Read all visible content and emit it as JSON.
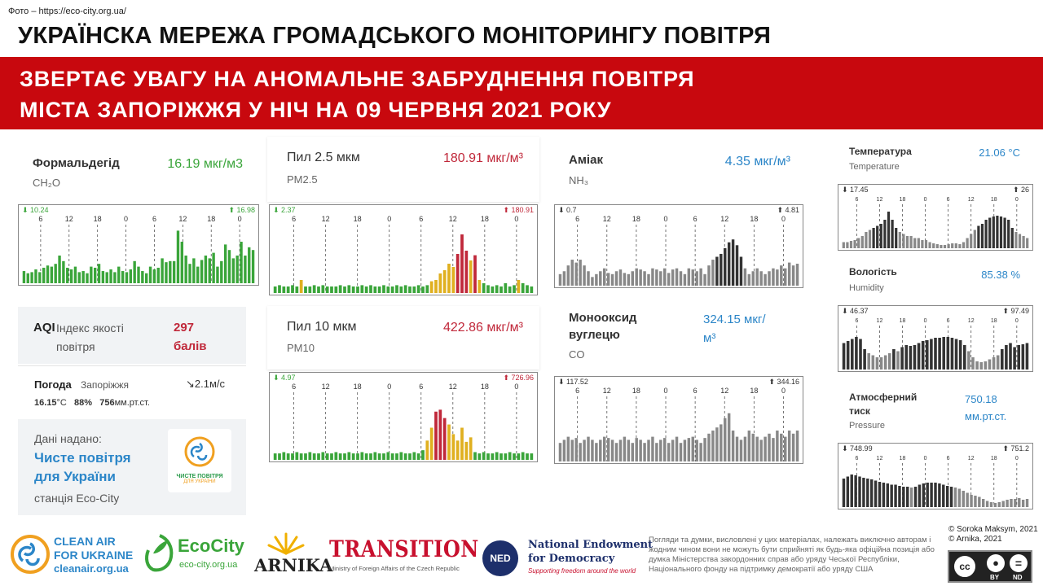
{
  "photo_credit": "Фото – https://eco-city.org.ua/",
  "title": "УКРАЇНСКА МЕРЕЖА ГРОМАДСЬКОГО МОНІТОРИНГУ ПОВІТРЯ",
  "banner": {
    "line1": "ЗВЕРТАЄ УВАГУ НА АНОМАЛЬНЕ ЗАБРУДНЕННЯ ПОВІТРЯ",
    "line2": "МІСТА ЗАПОРІЖЖЯ У НІЧ НА 09 ЧЕРВНЯ 2021 РОКУ"
  },
  "colors": {
    "green": "#3aa53a",
    "yellow": "#e0b020",
    "red": "#c0283a",
    "dark": "#333333",
    "grey": "#888888",
    "banner": "#c8080e"
  },
  "hour_labels": [
    "6",
    "12",
    "18",
    "0",
    "6",
    "12",
    "18",
    "0"
  ],
  "panels": {
    "ch2o": {
      "name": "Формальдегід",
      "formula": "CH₂O",
      "value": "16.19 мкг/м3",
      "min": "10.24",
      "max": "16.98",
      "color": "green",
      "bars": [
        0.22,
        0.18,
        0.2,
        0.25,
        0.2,
        0.28,
        0.32,
        0.3,
        0.35,
        0.5,
        0.4,
        0.28,
        0.25,
        0.3,
        0.2,
        0.22,
        0.18,
        0.3,
        0.28,
        0.35,
        0.22,
        0.2,
        0.25,
        0.2,
        0.3,
        0.22,
        0.2,
        0.25,
        0.4,
        0.3,
        0.22,
        0.18,
        0.3,
        0.25,
        0.28,
        0.45,
        0.38,
        0.4,
        0.4,
        0.95,
        0.75,
        0.5,
        0.35,
        0.45,
        0.3,
        0.42,
        0.5,
        0.45,
        0.55,
        0.3,
        0.4,
        0.7,
        0.6,
        0.45,
        0.5,
        0.75,
        0.5,
        0.65,
        0.6
      ]
    },
    "pm25": {
      "name": "Пил 2.5 мкм",
      "code": "PM2.5",
      "value": "180.91 мкг/м³",
      "min": "2.37",
      "max": "180.91",
      "bars": [
        0.1,
        0.12,
        0.1,
        0.1,
        0.12,
        0.1,
        0.2,
        0.1,
        0.1,
        0.12,
        0.1,
        0.12,
        0.1,
        0.1,
        0.1,
        0.12,
        0.1,
        0.12,
        0.1,
        0.1,
        0.12,
        0.1,
        0.12,
        0.1,
        0.1,
        0.12,
        0.1,
        0.1,
        0.12,
        0.1,
        0.12,
        0.1,
        0.1,
        0.12,
        0.1,
        0.12,
        0.18,
        0.2,
        0.3,
        0.35,
        0.45,
        0.4,
        0.6,
        0.9,
        0.65,
        0.5,
        0.58,
        0.2,
        0.15,
        0.12,
        0.1,
        0.12,
        0.1,
        0.15,
        0.1,
        0.12,
        0.2,
        0.15,
        0.12,
        0.1
      ]
    },
    "ammonia": {
      "name": "Аміак",
      "formula": "NH₃",
      "value": "4.35 мкг/м³",
      "min": "0.7",
      "max": "4.81",
      "color": "dark",
      "bars": [
        0.2,
        0.25,
        0.35,
        0.45,
        0.4,
        0.45,
        0.35,
        0.25,
        0.15,
        0.2,
        0.25,
        0.3,
        0.22,
        0.2,
        0.25,
        0.28,
        0.22,
        0.2,
        0.25,
        0.3,
        0.28,
        0.25,
        0.2,
        0.3,
        0.28,
        0.25,
        0.3,
        0.22,
        0.28,
        0.3,
        0.25,
        0.2,
        0.3,
        0.28,
        0.25,
        0.3,
        0.2,
        0.35,
        0.45,
        0.5,
        0.55,
        0.65,
        0.75,
        0.8,
        0.7,
        0.5,
        0.3,
        0.2,
        0.25,
        0.3,
        0.25,
        0.2,
        0.25,
        0.3,
        0.28,
        0.35,
        0.3,
        0.4,
        0.35,
        0.38
      ]
    },
    "temp": {
      "name": "Температура",
      "sub": "Temperature",
      "value": "21.06 °C",
      "min": "17.45",
      "max": "26",
      "color": "dark",
      "bars": [
        0.15,
        0.15,
        0.18,
        0.2,
        0.25,
        0.3,
        0.4,
        0.45,
        0.5,
        0.55,
        0.6,
        0.7,
        0.9,
        0.7,
        0.5,
        0.4,
        0.35,
        0.3,
        0.3,
        0.25,
        0.25,
        0.2,
        0.2,
        0.15,
        0.12,
        0.1,
        0.08,
        0.08,
        0.1,
        0.12,
        0.12,
        0.1,
        0.15,
        0.25,
        0.35,
        0.45,
        0.55,
        0.6,
        0.7,
        0.75,
        0.78,
        0.8,
        0.78,
        0.75,
        0.7,
        0.5,
        0.4,
        0.35,
        0.3,
        0.25
      ]
    },
    "co": {
      "name1": "Монооксид",
      "name2": "вуглецю",
      "code": "CO",
      "value1": "324.15 мкг/",
      "value2": "м³",
      "min": "117.52",
      "max": "344.16",
      "color": "grey",
      "bars": [
        0.3,
        0.35,
        0.4,
        0.35,
        0.38,
        0.3,
        0.35,
        0.4,
        0.35,
        0.3,
        0.35,
        0.4,
        0.38,
        0.35,
        0.3,
        0.35,
        0.4,
        0.35,
        0.3,
        0.38,
        0.35,
        0.3,
        0.35,
        0.4,
        0.3,
        0.35,
        0.38,
        0.3,
        0.35,
        0.4,
        0.3,
        0.35,
        0.38,
        0.4,
        0.35,
        0.3,
        0.38,
        0.45,
        0.5,
        0.55,
        0.6,
        0.7,
        0.78,
        0.5,
        0.4,
        0.35,
        0.4,
        0.5,
        0.45,
        0.4,
        0.35,
        0.4,
        0.45,
        0.38,
        0.5,
        0.45,
        0.4,
        0.5,
        0.45,
        0.5
      ]
    },
    "humid": {
      "name": "Вологість",
      "sub": "Humidity",
      "value": "85.38 %",
      "min": "46.37",
      "max": "97.49",
      "color": "dark",
      "bars": [
        0.65,
        0.7,
        0.75,
        0.8,
        0.75,
        0.5,
        0.4,
        0.35,
        0.3,
        0.3,
        0.35,
        0.4,
        0.5,
        0.45,
        0.55,
        0.6,
        0.58,
        0.6,
        0.65,
        0.7,
        0.72,
        0.75,
        0.78,
        0.78,
        0.8,
        0.8,
        0.78,
        0.75,
        0.72,
        0.6,
        0.45,
        0.3,
        0.2,
        0.18,
        0.2,
        0.25,
        0.3,
        0.35,
        0.5,
        0.6,
        0.65,
        0.55,
        0.6,
        0.62,
        0.65
      ]
    },
    "pm10": {
      "name": "Пил 10 мкм",
      "code": "PM10",
      "value": "422.86 мкг/м³",
      "min": "4.97",
      "max": "726.96",
      "bars": [
        0.1,
        0.1,
        0.12,
        0.1,
        0.1,
        0.12,
        0.1,
        0.1,
        0.12,
        0.1,
        0.1,
        0.12,
        0.1,
        0.1,
        0.12,
        0.1,
        0.1,
        0.12,
        0.1,
        0.1,
        0.12,
        0.1,
        0.1,
        0.12,
        0.1,
        0.1,
        0.12,
        0.1,
        0.1,
        0.12,
        0.1,
        0.1,
        0.12,
        0.1,
        0.15,
        0.3,
        0.5,
        0.75,
        0.78,
        0.65,
        0.55,
        0.4,
        0.3,
        0.5,
        0.28,
        0.35,
        0.12,
        0.1,
        0.12,
        0.1,
        0.1,
        0.12,
        0.1,
        0.1,
        0.12,
        0.1,
        0.1,
        0.12,
        0.1,
        0.1
      ]
    },
    "pressure": {
      "name1": "Атмосферний",
      "name2": "тиск",
      "sub": "Pressure",
      "value1": "750.18",
      "value2": "мм.рт.ст.",
      "min": "748.99",
      "max": "751.2",
      "color": "dark",
      "bars": [
        0.7,
        0.75,
        0.8,
        0.78,
        0.75,
        0.72,
        0.7,
        0.68,
        0.65,
        0.62,
        0.6,
        0.58,
        0.55,
        0.55,
        0.52,
        0.5,
        0.5,
        0.48,
        0.5,
        0.55,
        0.58,
        0.6,
        0.6,
        0.6,
        0.58,
        0.55,
        0.52,
        0.5,
        0.48,
        0.45,
        0.4,
        0.35,
        0.3,
        0.28,
        0.25,
        0.2,
        0.15,
        0.12,
        0.1,
        0.12,
        0.15,
        0.18,
        0.2,
        0.2,
        0.22,
        0.18,
        0.2
      ]
    }
  },
  "aqi": {
    "label": "AQI",
    "desc1": "Індекс якості",
    "desc2": "повітря",
    "value1": "297",
    "value2": "балів"
  },
  "weather": {
    "label": "Погода",
    "city": "Запоріжжя",
    "wind": "2.1м/с",
    "temp": "16.15",
    "temp_unit": "°C",
    "humidity": "88%",
    "pressure": "756",
    "pressure_unit": "мм.рт.ст."
  },
  "provider": {
    "label": "Дані надано:",
    "name1": "Чисте повітря",
    "name2": "для України",
    "station": "станція Eco-City",
    "logo_text1": "ЧИСТЕ ПОВІТРЯ",
    "logo_text2": "ДЛЯ УКРАЇНИ"
  },
  "footer": {
    "clean_air": {
      "l1": "CLEAN AIR",
      "l2": "FOR UKRAINE",
      "l3": "cleanair.org.ua"
    },
    "ecocity": {
      "l1": "EcoCity",
      "l2": "eco-city.org.ua"
    },
    "arnika": "ARNIKA",
    "transition": {
      "l1": "TRANSITION",
      "l2": "Ministry of Foreign Affairs of the Czech Republic"
    },
    "ned": {
      "badge": "NED",
      "l1": "National Endowment",
      "l2": "for Democracy",
      "l3": "Supporting freedom around the world"
    },
    "disclaimer": "Погляди та думки, висловлені у цих матеріалах, належать виключно авторам і жодним чином вони не можуть бути сприйняті як будь-яка офіційна позиція або думка Міністерства закордонних справ або уряду Чеської Республіки, Національного фонду на підтримку демократії або уряду США",
    "copyright1": "© Soroka Maksym, 2021",
    "copyright2": "© Arnika, 2021",
    "cc": {
      "by": "BY",
      "nd": "ND"
    }
  }
}
